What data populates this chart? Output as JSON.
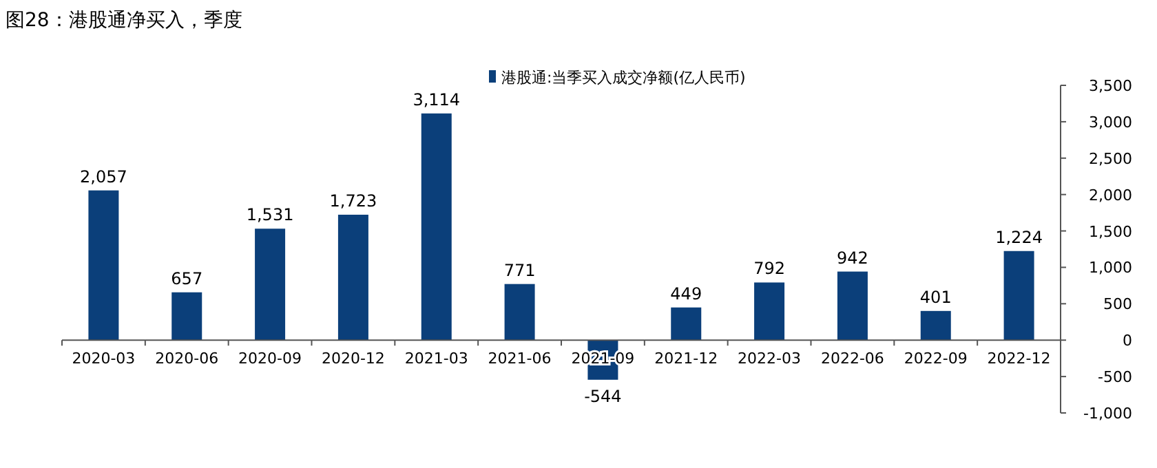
{
  "chart_data": {
    "type": "bar",
    "title": "图28：港股通净买入，季度",
    "categories": [
      "2020-03",
      "2020-06",
      "2020-09",
      "2020-12",
      "2021-03",
      "2021-06",
      "2021-09",
      "2021-12",
      "2022-03",
      "2022-06",
      "2022-09",
      "2022-12"
    ],
    "series": [
      {
        "name": "港股通:当季买入成交净额(亿人民币)",
        "color": "#0b3f7a",
        "values": [
          2057,
          657,
          1531,
          1723,
          3114,
          771,
          -544,
          449,
          792,
          942,
          401,
          1224
        ],
        "value_labels": [
          "2,057",
          "657",
          "1,531",
          "1,723",
          "3,114",
          "771",
          "-544",
          "449",
          "792",
          "942",
          "401",
          "1,224"
        ]
      }
    ],
    "ylim": [
      -1000,
      3500
    ],
    "yticks": [
      {
        "value": -1000,
        "label": "-1,000"
      },
      {
        "value": -500,
        "label": "-500"
      },
      0,
      500,
      {
        "value": 1000,
        "label": "1,000"
      },
      {
        "value": 1500,
        "label": "1,500"
      },
      {
        "value": 2000,
        "label": "2,000"
      },
      {
        "value": 2500,
        "label": "2,500"
      },
      {
        "value": 3000,
        "label": "3,000"
      },
      {
        "value": 3500,
        "label": "3,500"
      }
    ],
    "legend": "top",
    "grid": false
  }
}
